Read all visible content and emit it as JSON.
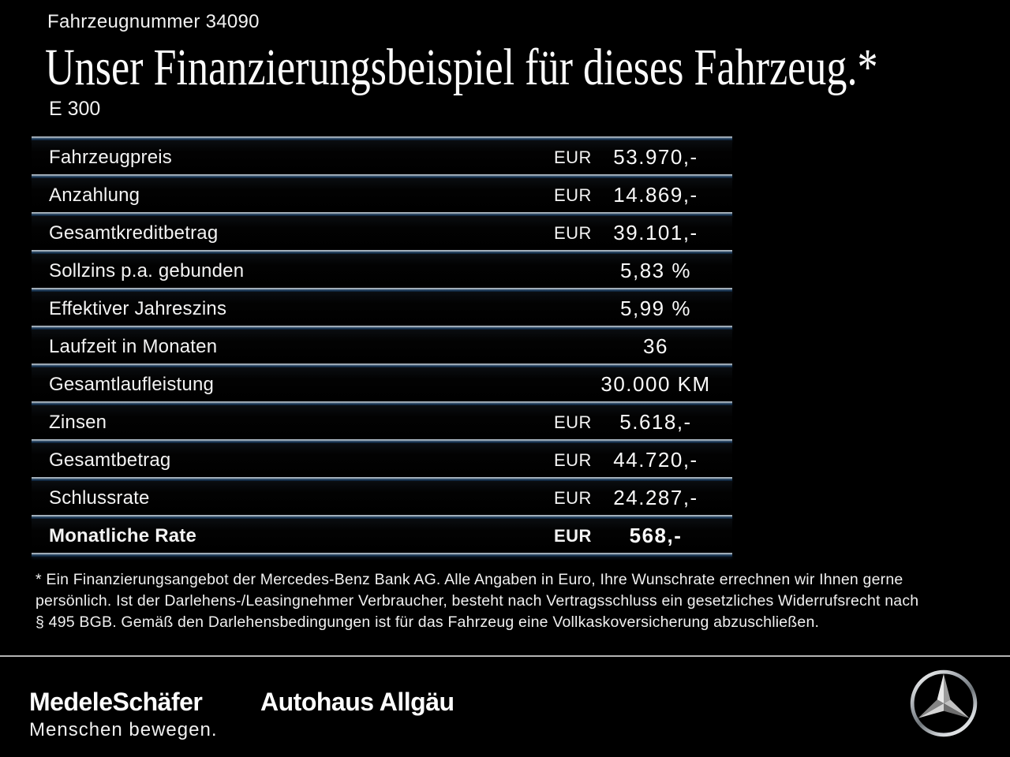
{
  "header": {
    "vehicle_number": "Fahrzeugnummer 34090",
    "title": "Unser Finanzierungsbeispiel für dieses Fahrzeug.*",
    "model": "E 300"
  },
  "table": {
    "rows": [
      {
        "label": "Fahrzeugpreis",
        "currency": "EUR",
        "value": "53.970,-",
        "highlight": false
      },
      {
        "label": "Anzahlung",
        "currency": "EUR",
        "value": "14.869,-",
        "highlight": false
      },
      {
        "label": "Gesamtkreditbetrag",
        "currency": "EUR",
        "value": "39.101,-",
        "highlight": false
      },
      {
        "label": "Sollzins p.a. gebunden",
        "currency": "",
        "value": "5,83 %",
        "highlight": false
      },
      {
        "label": "Effektiver Jahreszins",
        "currency": "",
        "value": "5,99 %",
        "highlight": false
      },
      {
        "label": "Laufzeit in Monaten",
        "currency": "",
        "value": "36",
        "highlight": false
      },
      {
        "label": "Gesamtlaufleistung",
        "currency": "",
        "value": "30.000 KM",
        "highlight": false
      },
      {
        "label": "Zinsen",
        "currency": "EUR",
        "value": "5.618,-",
        "highlight": false
      },
      {
        "label": "Gesamtbetrag",
        "currency": "EUR",
        "value": "44.720,-",
        "highlight": false
      },
      {
        "label": "Schlussrate",
        "currency": "EUR",
        "value": "24.287,-",
        "highlight": false
      },
      {
        "label": "Monatliche Rate",
        "currency": "EUR",
        "value": "568,-",
        "highlight": true
      }
    ]
  },
  "footnote": {
    "lines": [
      "* Ein Finanzierungsangebot der Mercedes-Benz Bank AG. Alle Angaben in Euro, Ihre Wunschrate errechnen wir Ihnen gerne",
      "persönlich. Ist der Darlehens-/Leasingnehmer Verbraucher, besteht nach Vertragsschluss ein gesetzliches Widerrufsrecht nach",
      "§ 495 BGB. Gemäß den Darlehensbedingungen ist für das Fahrzeug eine Vollkaskoversicherung abzuschließen."
    ],
    "full_text": "* Ein Finanzierungsangebot der Mercedes-Benz Bank AG. Alle Angaben in Euro, Ihre Wunschrate errechnen wir Ihnen gerne persönlich. Ist der Darlehens-/Leasingnehmer Verbraucher, besteht nach Vertragsschluss ein gesetzliches Widerrufsrecht nach § 495 BGB. Gemäß den Darlehensbedingungen ist für das Fahrzeug eine Vollkaskoversicherung abzuschließen."
  },
  "footer": {
    "dealer_logo": "MedeleSchäfer",
    "dealer_tagline": "Menschen bewegen.",
    "dealer_secondary": "Autohaus Allgäu",
    "brand_icon": "mercedes-star-icon"
  },
  "colors": {
    "background": "#000000",
    "text": "#f4f4f4",
    "separator_light": "#b9c2ca",
    "separator_navy": "#1e3a58",
    "footer_divider": "#b4b4b4",
    "star_silver": "#d9d9d9"
  }
}
